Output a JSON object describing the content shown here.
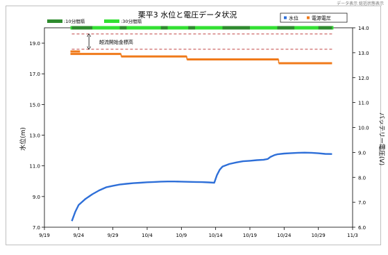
{
  "corner_note": "データ表示 総括状態表示",
  "chart_data": {
    "type": "line",
    "title": "栗平3 水位と電圧データ状況",
    "xlabel": "",
    "ylabel": "水位(m)",
    "y2label": "バッテリー電圧(V)",
    "xlim": [
      0,
      45
    ],
    "x_ticks": [
      {
        "value": 0,
        "label": "9/19"
      },
      {
        "value": 5,
        "label": "9/24"
      },
      {
        "value": 10,
        "label": "9/29"
      },
      {
        "value": 15,
        "label": "10/4"
      },
      {
        "value": 20,
        "label": "10/9"
      },
      {
        "value": 25,
        "label": "10/14"
      },
      {
        "value": 30,
        "label": "10/19"
      },
      {
        "value": 35,
        "label": "10/24"
      },
      {
        "value": 40,
        "label": "10/29"
      },
      {
        "value": 45,
        "label": "11/3"
      }
    ],
    "ylim": [
      7.0,
      20.0
    ],
    "y_ticks": [
      7.0,
      9.0,
      11.0,
      13.0,
      15.0,
      17.0,
      19.0
    ],
    "y2lim": [
      6.0,
      14.0
    ],
    "y2_ticks": [
      6.0,
      7.0,
      8.0,
      9.0,
      10.0,
      11.0,
      12.0,
      13.0,
      14.0
    ],
    "grid": false,
    "legend_placement": "top-right",
    "legend": [
      {
        "name": "水位",
        "marker": "▪",
        "color": "#2e6fd8"
      },
      {
        "name": "電源電圧",
        "marker": "▪",
        "color": "#f07a1a"
      }
    ],
    "top_legend": [
      {
        "name": ":10分間隔",
        "color": "#2e8b2e"
      },
      {
        "name": ":30分間隔",
        "color": "#33e033"
      }
    ],
    "series": [
      {
        "name": "水位",
        "axis": "left",
        "color": "#2e6fd8",
        "points": [
          [
            4,
            7.4
          ],
          [
            4.5,
            8.0
          ],
          [
            5,
            8.45
          ],
          [
            6,
            8.85
          ],
          [
            7,
            9.15
          ],
          [
            8,
            9.4
          ],
          [
            9,
            9.6
          ],
          [
            10,
            9.7
          ],
          [
            11,
            9.78
          ],
          [
            12,
            9.83
          ],
          [
            13,
            9.87
          ],
          [
            14,
            9.9
          ],
          [
            15,
            9.93
          ],
          [
            16,
            9.95
          ],
          [
            17,
            9.97
          ],
          [
            18,
            9.98
          ],
          [
            19,
            9.98
          ],
          [
            20,
            9.97
          ],
          [
            21,
            9.96
          ],
          [
            22,
            9.95
          ],
          [
            23,
            9.94
          ],
          [
            24,
            9.92
          ],
          [
            24.8,
            9.9
          ],
          [
            25.2,
            10.4
          ],
          [
            25.6,
            10.75
          ],
          [
            26,
            10.95
          ],
          [
            27,
            11.12
          ],
          [
            28,
            11.22
          ],
          [
            29,
            11.3
          ],
          [
            30,
            11.33
          ],
          [
            31,
            11.37
          ],
          [
            32,
            11.4
          ],
          [
            32.6,
            11.45
          ],
          [
            33,
            11.58
          ],
          [
            33.6,
            11.7
          ],
          [
            34,
            11.75
          ],
          [
            35,
            11.8
          ],
          [
            36,
            11.83
          ],
          [
            37,
            11.85
          ],
          [
            38,
            11.86
          ],
          [
            39,
            11.85
          ],
          [
            40,
            11.82
          ],
          [
            41,
            11.78
          ],
          [
            42,
            11.77
          ]
        ]
      },
      {
        "name": "電源電圧",
        "axis": "right",
        "color": "#f07a1a",
        "segments": [
          {
            "x": [
              3.8,
              11.2
            ],
            "y": 12.95
          },
          {
            "x": [
              11.2,
              20.8
            ],
            "y": 12.85
          },
          {
            "x": [
              20.8,
              34.2
            ],
            "y": 12.73
          },
          {
            "x": [
              34.2,
              42.0
            ],
            "y": 12.58
          }
        ],
        "start_cluster": {
          "x": [
            3.8,
            5.2
          ],
          "y": 13.05
        }
      }
    ],
    "comm_bars": {
      "y": 14.0,
      "thirty_min": {
        "color": "#33e033",
        "ranges": [
          [
            3.8,
            42.2
          ]
        ]
      },
      "ten_min": {
        "color": "#2e8b2e",
        "ranges": [
          [
            4.0,
            7.0
          ],
          [
            11.0,
            12.0
          ],
          [
            17.0,
            18.0
          ],
          [
            21.0,
            22.0
          ],
          [
            26.0,
            30.0
          ],
          [
            34.0,
            36.5
          ],
          [
            40.0,
            42.0
          ]
        ]
      }
    },
    "reference_lines": [
      {
        "axis": "left",
        "value": 19.6,
        "style": "dashed",
        "color": "#c04040"
      },
      {
        "axis": "left",
        "value": 18.6,
        "style": "dashed",
        "color": "#c04040"
      }
    ],
    "annotation": {
      "text": "越流開始金標高",
      "x": 8.0,
      "y": 19.1,
      "arrow_x": 6.5,
      "arrow_from": 19.6,
      "arrow_to": 18.6
    }
  }
}
